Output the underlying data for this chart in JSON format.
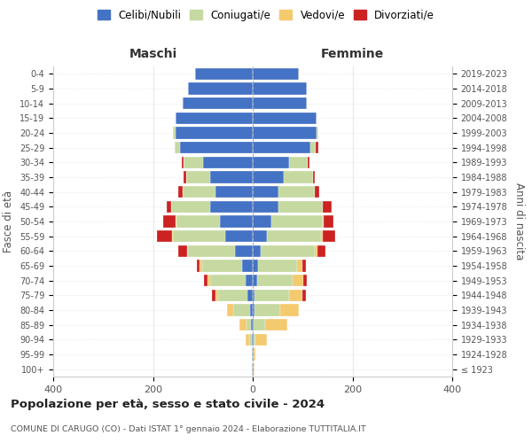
{
  "age_groups": [
    "100+",
    "95-99",
    "90-94",
    "85-89",
    "80-84",
    "75-79",
    "70-74",
    "65-69",
    "60-64",
    "55-59",
    "50-54",
    "45-49",
    "40-44",
    "35-39",
    "30-34",
    "25-29",
    "20-24",
    "15-19",
    "10-14",
    "5-9",
    "0-4"
  ],
  "birth_years": [
    "≤ 1923",
    "1924-1928",
    "1929-1933",
    "1934-1938",
    "1939-1943",
    "1944-1948",
    "1949-1953",
    "1954-1958",
    "1959-1963",
    "1964-1968",
    "1969-1973",
    "1974-1978",
    "1979-1983",
    "1984-1988",
    "1989-1993",
    "1994-1998",
    "1999-2003",
    "2004-2008",
    "2009-2013",
    "2014-2018",
    "2019-2023"
  ],
  "colors": {
    "celibi": "#4472c4",
    "coniugati": "#c5d9a0",
    "vedovi": "#f5c96e",
    "divorziati": "#cc2222"
  },
  "maschi": {
    "celibi": [
      1,
      1,
      2,
      3,
      5,
      10,
      15,
      22,
      35,
      55,
      65,
      85,
      75,
      85,
      100,
      145,
      155,
      155,
      140,
      130,
      115
    ],
    "coniugati": [
      0,
      0,
      5,
      10,
      35,
      60,
      70,
      80,
      95,
      105,
      88,
      78,
      65,
      48,
      38,
      12,
      5,
      0,
      0,
      0,
      0
    ],
    "vedovi": [
      0,
      1,
      8,
      14,
      12,
      5,
      5,
      4,
      2,
      2,
      1,
      0,
      0,
      0,
      0,
      0,
      0,
      0,
      0,
      0,
      0
    ],
    "divorziati": [
      0,
      0,
      0,
      0,
      0,
      6,
      8,
      6,
      18,
      30,
      26,
      10,
      9,
      5,
      5,
      0,
      0,
      0,
      0,
      0,
      0
    ]
  },
  "femmine": {
    "celibi": [
      0,
      0,
      1,
      2,
      3,
      4,
      8,
      10,
      16,
      28,
      38,
      52,
      52,
      62,
      72,
      115,
      128,
      128,
      108,
      108,
      92
    ],
    "coniugati": [
      1,
      2,
      5,
      22,
      52,
      68,
      72,
      78,
      108,
      108,
      102,
      88,
      72,
      58,
      38,
      12,
      4,
      0,
      0,
      0,
      0
    ],
    "vedovi": [
      2,
      4,
      22,
      45,
      38,
      28,
      22,
      12,
      5,
      4,
      2,
      0,
      0,
      0,
      0,
      0,
      0,
      0,
      0,
      0,
      0
    ],
    "divorziati": [
      0,
      0,
      0,
      0,
      0,
      6,
      6,
      6,
      16,
      26,
      20,
      18,
      10,
      4,
      4,
      4,
      0,
      0,
      0,
      0,
      0
    ]
  },
  "title_main": "Popolazione per età, sesso e stato civile - 2024",
  "title_sub": "COMUNE DI CARUGO (CO) - Dati ISTAT 1° gennaio 2024 - Elaborazione TUTTITALIA.IT",
  "xlabel_left": "Maschi",
  "xlabel_right": "Femmine",
  "ylabel_left": "Fasce di età",
  "ylabel_right": "Anni di nascita",
  "xlim": 400,
  "legend_labels": [
    "Celibi/Nubili",
    "Coniugati/e",
    "Vedovi/e",
    "Divorziati/e"
  ]
}
